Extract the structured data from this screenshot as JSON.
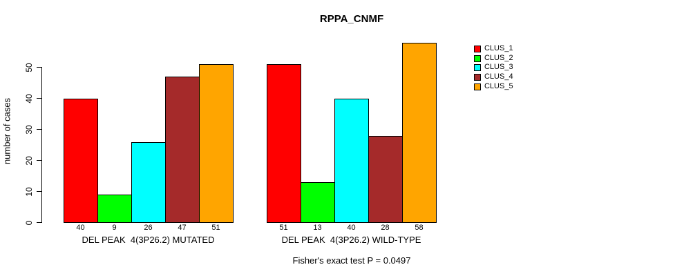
{
  "title": "RPPA_CNMF",
  "chart_data": {
    "type": "bar",
    "title": "RPPA_CNMF",
    "xlabel": "",
    "ylabel": "number of cases",
    "ylim": [
      0,
      58
    ],
    "yticks": [
      0,
      10,
      20,
      30,
      40,
      50
    ],
    "grid": false,
    "legend_position": "right-inside-top",
    "bar_value_labels_shown": true,
    "series": [
      {
        "name": "CLUS_1",
        "color": "#FF0000"
      },
      {
        "name": "CLUS_2",
        "color": "#00FF00"
      },
      {
        "name": "CLUS_3",
        "color": "#00FFFF"
      },
      {
        "name": "CLUS_4",
        "color": "#A52A2A"
      },
      {
        "name": "CLUS_5",
        "color": "#FFA500"
      }
    ],
    "groups": [
      {
        "label": "DEL PEAK  4(3P26.2) MUTATED",
        "values": [
          40,
          9,
          26,
          47,
          51
        ]
      },
      {
        "label": "DEL PEAK  4(3P26.2) WILD-TYPE",
        "values": [
          51,
          13,
          40,
          28,
          58
        ]
      }
    ],
    "annotation": "Fisher's exact test P = 0.0497"
  }
}
